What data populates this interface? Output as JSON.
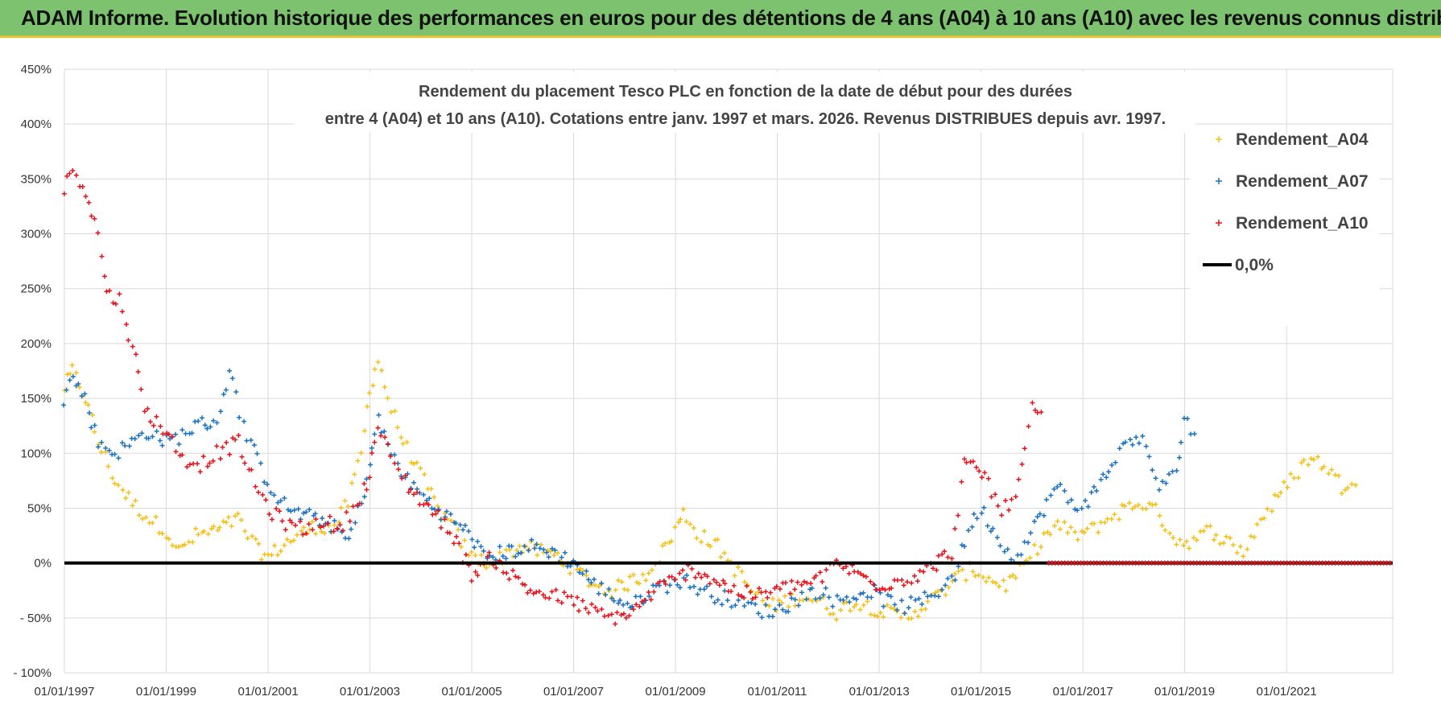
{
  "banner": {
    "title": "ADAM Informe. Evolution historique des performances en euros pour des détentions de 4 ans (A04) à 10 ans (A10) avec les revenus connus distribués"
  },
  "chart_data": {
    "type": "scatter",
    "title_lines": [
      "Rendement du placement Tesco PLC en fonction de la date de début pour des durées",
      "entre 4 (A04) et 10 ans (A10). Cotations entre janv. 1997 et mars. 2026. Revenus DISTRIBUES depuis avr. 1997."
    ],
    "xlabel": "",
    "ylabel": "",
    "xlim": [
      "1997-01-01",
      "2023-02-01"
    ],
    "ylim": [
      -100,
      450
    ],
    "y_ticks": [
      -100,
      -50,
      0,
      50,
      100,
      150,
      200,
      250,
      300,
      350,
      400,
      450
    ],
    "y_tick_labels": [
      "- 100%",
      "- 50%",
      "0%",
      "50%",
      "100%",
      "150%",
      "200%",
      "250%",
      "300%",
      "350%",
      "400%",
      "450%"
    ],
    "x_ticks": [
      "1997-01-01",
      "1999-01-01",
      "2001-01-01",
      "2003-01-01",
      "2005-01-01",
      "2007-01-01",
      "2009-01-01",
      "2011-01-01",
      "2013-01-01",
      "2015-01-01",
      "2017-01-01",
      "2019-01-01",
      "2021-01-01"
    ],
    "x_tick_labels": [
      "01/01/1997",
      "01/01/1999",
      "01/01/2001",
      "01/01/2003",
      "01/01/2005",
      "01/01/2007",
      "01/01/2009",
      "01/01/2011",
      "01/01/2013",
      "01/01/2015",
      "01/01/2017",
      "01/01/2019",
      "01/01/2021"
    ],
    "grid": true,
    "legend_position": "top-right",
    "series": [
      {
        "name": "Rendement_A04",
        "color": "#f5c016",
        "marker": "plus",
        "points": [
          [
            "1997-01-01",
            160
          ],
          [
            "1997-03-01",
            175
          ],
          [
            "1997-06-01",
            150
          ],
          [
            "1997-09-01",
            110
          ],
          [
            "1998-01-01",
            75
          ],
          [
            "1998-05-01",
            55
          ],
          [
            "1998-09-01",
            40
          ],
          [
            "1999-01-01",
            30
          ],
          [
            "1999-04-01",
            10
          ],
          [
            "1999-08-01",
            25
          ],
          [
            "2000-01-01",
            30
          ],
          [
            "2000-06-01",
            40
          ],
          [
            "2000-10-01",
            15
          ],
          [
            "2001-01-01",
            5
          ],
          [
            "2001-04-01",
            15
          ],
          [
            "2001-08-01",
            25
          ],
          [
            "2002-01-01",
            35
          ],
          [
            "2002-04-01",
            30
          ],
          [
            "2002-08-01",
            55
          ],
          [
            "2002-11-01",
            100
          ],
          [
            "2003-01-01",
            160
          ],
          [
            "2003-03-01",
            185
          ],
          [
            "2003-06-01",
            140
          ],
          [
            "2003-09-01",
            110
          ],
          [
            "2004-01-01",
            80
          ],
          [
            "2004-05-01",
            50
          ],
          [
            "2004-09-01",
            30
          ],
          [
            "2005-01-01",
            5
          ],
          [
            "2005-06-01",
            0
          ],
          [
            "2005-10-01",
            10
          ],
          [
            "2006-01-01",
            15
          ],
          [
            "2006-06-01",
            10
          ],
          [
            "2006-10-01",
            5
          ],
          [
            "2007-01-01",
            -5
          ],
          [
            "2007-06-01",
            -20
          ],
          [
            "2007-10-01",
            -25
          ],
          [
            "2008-01-01",
            -20
          ],
          [
            "2008-06-01",
            -10
          ],
          [
            "2008-10-01",
            10
          ],
          [
            "2009-01-01",
            30
          ],
          [
            "2009-03-01",
            45
          ],
          [
            "2009-07-01",
            25
          ],
          [
            "2009-11-01",
            15
          ],
          [
            "2010-03-01",
            -5
          ],
          [
            "2010-07-01",
            -25
          ],
          [
            "2010-11-01",
            -40
          ],
          [
            "2011-03-01",
            -35
          ],
          [
            "2011-07-01",
            -30
          ],
          [
            "2011-11-01",
            -35
          ],
          [
            "2012-03-01",
            -45
          ],
          [
            "2012-07-01",
            -35
          ],
          [
            "2012-11-01",
            -40
          ],
          [
            "2013-03-01",
            -45
          ],
          [
            "2013-07-01",
            -50
          ],
          [
            "2013-11-01",
            -40
          ],
          [
            "2014-03-01",
            -30
          ],
          [
            "2014-07-01",
            -15
          ],
          [
            "2014-11-01",
            -5
          ],
          [
            "2015-03-01",
            -15
          ],
          [
            "2015-07-01",
            -20
          ],
          [
            "2015-11-01",
            -5
          ],
          [
            "2016-03-01",
            20
          ],
          [
            "2016-07-01",
            35
          ],
          [
            "2016-11-01",
            25
          ],
          [
            "2017-03-01",
            30
          ],
          [
            "2017-07-01",
            40
          ],
          [
            "2017-11-01",
            50
          ],
          [
            "2018-03-01",
            55
          ],
          [
            "2018-07-01",
            45
          ],
          [
            "2018-11-01",
            20
          ],
          [
            "2019-03-01",
            20
          ],
          [
            "2019-07-01",
            30
          ],
          [
            "2019-11-01",
            20
          ],
          [
            "2020-03-01",
            10
          ],
          [
            "2020-07-01",
            40
          ],
          [
            "2020-11-01",
            60
          ],
          [
            "2021-03-01",
            80
          ],
          [
            "2021-06-01",
            95
          ],
          [
            "2021-10-01",
            90
          ],
          [
            "2022-02-01",
            70
          ],
          [
            "2022-06-01",
            80
          ]
        ]
      },
      {
        "name": "Rendement_A07",
        "color": "#1a72c4",
        "marker": "plus",
        "points": [
          [
            "1997-01-01",
            150
          ],
          [
            "1997-03-01",
            170
          ],
          [
            "1997-06-01",
            150
          ],
          [
            "1997-09-01",
            110
          ],
          [
            "1998-01-01",
            100
          ],
          [
            "1998-05-01",
            110
          ],
          [
            "1998-09-01",
            120
          ],
          [
            "1999-01-01",
            110
          ],
          [
            "1999-04-01",
            115
          ],
          [
            "1999-08-01",
            125
          ],
          [
            "2000-01-01",
            130
          ],
          [
            "2000-04-01",
            175
          ],
          [
            "2000-08-01",
            115
          ],
          [
            "2000-12-01",
            80
          ],
          [
            "2001-04-01",
            55
          ],
          [
            "2001-08-01",
            45
          ],
          [
            "2002-01-01",
            40
          ],
          [
            "2002-04-01",
            35
          ],
          [
            "2002-08-01",
            20
          ],
          [
            "2002-11-01",
            55
          ],
          [
            "2003-01-01",
            90
          ],
          [
            "2003-03-01",
            130
          ],
          [
            "2003-06-01",
            100
          ],
          [
            "2003-10-01",
            75
          ],
          [
            "2004-03-01",
            55
          ],
          [
            "2004-08-01",
            40
          ],
          [
            "2005-01-01",
            25
          ],
          [
            "2005-04-01",
            5
          ],
          [
            "2005-09-01",
            10
          ],
          [
            "2006-03-01",
            15
          ],
          [
            "2006-08-01",
            10
          ],
          [
            "2007-01-01",
            0
          ],
          [
            "2007-06-01",
            -20
          ],
          [
            "2007-10-01",
            -30
          ],
          [
            "2008-03-01",
            -40
          ],
          [
            "2008-07-01",
            -25
          ],
          [
            "2008-11-01",
            -20
          ],
          [
            "2009-03-01",
            -15
          ],
          [
            "2009-07-01",
            -25
          ],
          [
            "2009-11-01",
            -30
          ],
          [
            "2010-03-01",
            -35
          ],
          [
            "2010-07-01",
            -40
          ],
          [
            "2010-11-01",
            -45
          ],
          [
            "2011-03-01",
            -40
          ],
          [
            "2011-07-01",
            -30
          ],
          [
            "2011-11-01",
            -25
          ],
          [
            "2012-03-01",
            -35
          ],
          [
            "2012-07-01",
            -30
          ],
          [
            "2012-11-01",
            -25
          ],
          [
            "2013-03-01",
            -35
          ],
          [
            "2013-07-01",
            -40
          ],
          [
            "2013-11-01",
            -35
          ],
          [
            "2014-03-01",
            -25
          ],
          [
            "2014-07-01",
            -10
          ],
          [
            "2014-10-01",
            30
          ],
          [
            "2015-01-01",
            50
          ],
          [
            "2015-04-01",
            30
          ],
          [
            "2015-08-01",
            5
          ],
          [
            "2015-12-01",
            20
          ],
          [
            "2016-03-01",
            45
          ],
          [
            "2016-07-01",
            70
          ],
          [
            "2016-11-01",
            50
          ],
          [
            "2017-03-01",
            60
          ],
          [
            "2017-08-01",
            90
          ],
          [
            "2017-12-01",
            115
          ],
          [
            "2018-03-01",
            110
          ],
          [
            "2018-07-01",
            70
          ],
          [
            "2018-11-01",
            80
          ],
          [
            "2019-01-01",
            135
          ],
          [
            "2019-04-01",
            110
          ]
        ]
      },
      {
        "name": "Rendement_A10",
        "color": "#e8121a",
        "marker": "plus",
        "points": [
          [
            "1997-01-01",
            340
          ],
          [
            "1997-03-01",
            360
          ],
          [
            "1997-06-01",
            340
          ],
          [
            "1997-09-01",
            300
          ],
          [
            "1997-11-01",
            245
          ],
          [
            "1998-02-01",
            240
          ],
          [
            "1998-05-01",
            200
          ],
          [
            "1998-08-01",
            140
          ],
          [
            "1999-01-01",
            120
          ],
          [
            "1999-05-01",
            95
          ],
          [
            "1999-09-01",
            90
          ],
          [
            "2000-01-01",
            100
          ],
          [
            "2000-06-01",
            110
          ],
          [
            "2000-10-01",
            70
          ],
          [
            "2001-02-01",
            45
          ],
          [
            "2001-06-01",
            35
          ],
          [
            "2001-10-01",
            30
          ],
          [
            "2002-02-01",
            40
          ],
          [
            "2002-06-01",
            30
          ],
          [
            "2002-10-01",
            55
          ],
          [
            "2003-01-01",
            80
          ],
          [
            "2003-03-01",
            125
          ],
          [
            "2003-06-01",
            95
          ],
          [
            "2003-10-01",
            70
          ],
          [
            "2004-03-01",
            50
          ],
          [
            "2004-08-01",
            30
          ],
          [
            "2005-01-01",
            -10
          ],
          [
            "2005-06-01",
            5
          ],
          [
            "2005-10-01",
            -10
          ],
          [
            "2006-03-01",
            -25
          ],
          [
            "2006-08-01",
            -30
          ],
          [
            "2007-01-01",
            -35
          ],
          [
            "2007-06-01",
            -45
          ],
          [
            "2007-10-01",
            -50
          ],
          [
            "2008-03-01",
            -45
          ],
          [
            "2008-08-01",
            -25
          ],
          [
            "2009-01-01",
            -15
          ],
          [
            "2009-05-01",
            -5
          ],
          [
            "2009-10-01",
            -15
          ],
          [
            "2010-03-01",
            -25
          ],
          [
            "2010-08-01",
            -30
          ],
          [
            "2011-01-01",
            -25
          ],
          [
            "2011-06-01",
            -20
          ],
          [
            "2011-11-01",
            -15
          ],
          [
            "2012-03-01",
            0
          ],
          [
            "2012-08-01",
            -10
          ],
          [
            "2013-01-01",
            -20
          ],
          [
            "2013-07-01",
            -15
          ],
          [
            "2014-01-01",
            -5
          ],
          [
            "2014-06-01",
            10
          ],
          [
            "2014-09-01",
            90
          ],
          [
            "2015-02-01",
            80
          ],
          [
            "2015-06-01",
            45
          ],
          [
            "2015-10-01",
            70
          ],
          [
            "2016-01-01",
            140
          ],
          [
            "2016-04-01",
            130
          ]
        ],
        "zero_band": [
          "2016-05-01",
          "2023-02-01",
          0
        ]
      },
      {
        "name": "0,0%",
        "color": "#000000",
        "marker": "line",
        "value": 0
      }
    ]
  }
}
